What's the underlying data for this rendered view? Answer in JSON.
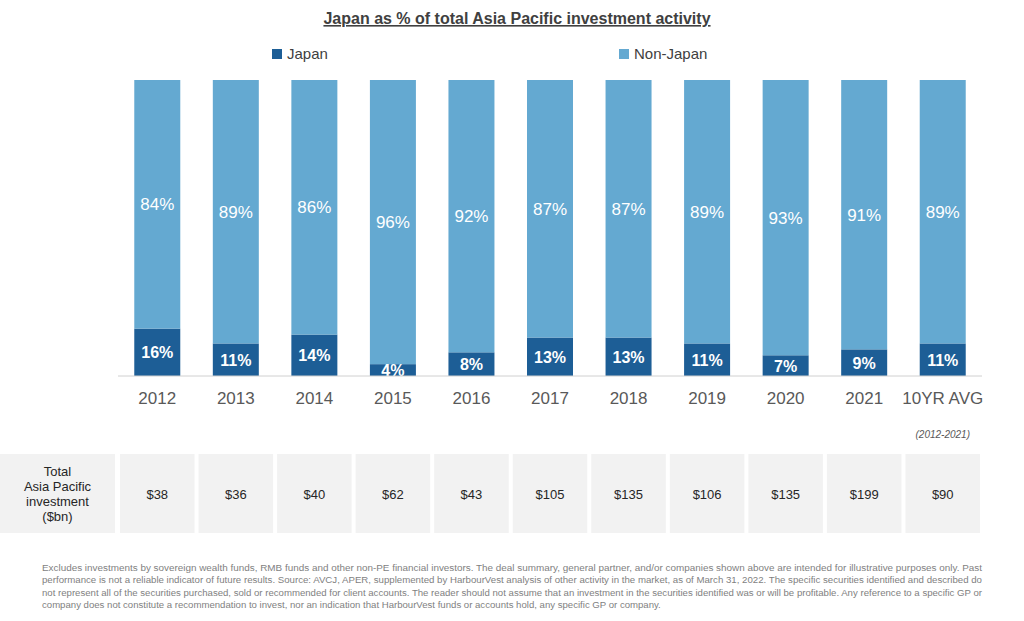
{
  "chart_data": {
    "type": "bar",
    "title": "Japan as % of total Asia Pacific investment activity",
    "categories": [
      "2012",
      "2013",
      "2014",
      "2015",
      "2016",
      "2017",
      "2018",
      "2019",
      "2020",
      "2021",
      "10YR AVG"
    ],
    "annotations": [
      "(2012-2021)"
    ],
    "series": [
      {
        "name": "Japan",
        "color": "#1d5e96",
        "values": [
          16,
          11,
          14,
          4,
          8,
          13,
          13,
          11,
          7,
          9,
          11
        ],
        "value_labels": [
          "16%",
          "11%",
          "14%",
          "4%",
          "8%",
          "13%",
          "13%",
          "11%",
          "7%",
          "9%",
          "11%"
        ]
      },
      {
        "name": "Non-Japan",
        "color": "#64a9d1",
        "values": [
          84,
          89,
          86,
          96,
          92,
          87,
          87,
          89,
          93,
          91,
          89
        ],
        "value_labels": [
          "84%",
          "89%",
          "86%",
          "96%",
          "92%",
          "87%",
          "87%",
          "89%",
          "93%",
          "91%",
          "89%"
        ]
      }
    ],
    "stacked": true,
    "data_labels": true,
    "tick_labels": "x",
    "legend": "top",
    "ylim": [
      0,
      100
    ]
  },
  "table": {
    "row_label": [
      "Total",
      "Asia Pacific",
      "investment",
      "($bn)"
    ],
    "cells": [
      "$38",
      "$36",
      "$40",
      "$62",
      "$43",
      "$105",
      "$135",
      "$106",
      "$135",
      "$199",
      "$90"
    ]
  },
  "footnote": [
    "Excludes investments by sovereign wealth funds, RMB funds and other non-PE financial investors. The deal summary, general partner, and/or companies shown above are intended for illustrative purposes only. Past",
    "performance is not a reliable indicator of future results. Source: AVCJ, APER, supplemented by HarbourVest analysis of other activity in the market, as of March 31, 2022. The specific securities identified and described do",
    "not represent all of the securities purchased, sold or recommended for client accounts. The reader should not assume that an investment in the securities identified was or will be profitable.  Any reference to a specific GP or",
    "company does not constitute a recommendation to invest, nor an indication that HarbourVest funds or accounts hold, any specific GP or company."
  ]
}
